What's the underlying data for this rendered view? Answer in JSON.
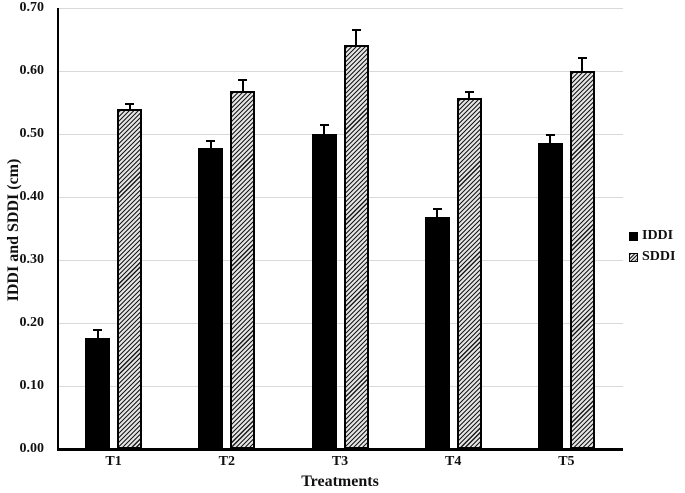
{
  "chart_data": {
    "type": "bar",
    "title": "",
    "xlabel": "Treatments",
    "ylabel": "IDDI and SDDI (cm)",
    "categories": [
      "T1",
      "T2",
      "T3",
      "T4",
      "T5"
    ],
    "series": [
      {
        "name": "IDDI",
        "style": "solid-black",
        "values": [
          0.176,
          0.478,
          0.5,
          0.368,
          0.485
        ],
        "errors_plus": [
          0.015,
          0.012,
          0.016,
          0.015,
          0.015
        ]
      },
      {
        "name": "SDDI",
        "style": "diagonal-hatch",
        "values": [
          0.54,
          0.568,
          0.641,
          0.557,
          0.6
        ],
        "errors_plus": [
          0.01,
          0.02,
          0.025,
          0.012,
          0.022
        ]
      }
    ],
    "ylim": [
      0.0,
      0.7
    ],
    "ytick_step": 0.1,
    "ytick_labels": [
      "0.00",
      "0.10",
      "0.20",
      "0.30",
      "0.40",
      "0.50",
      "0.60",
      "0.70"
    ],
    "grid": "horizontal",
    "legend_position": "right",
    "colors": {
      "bar_solid": "#000000",
      "hatch_dark": "#1a1a1a",
      "hatch_light": "#e3e3e3",
      "gridline": "#d9d9d9",
      "axis": "#000000",
      "text": "#111111"
    }
  }
}
